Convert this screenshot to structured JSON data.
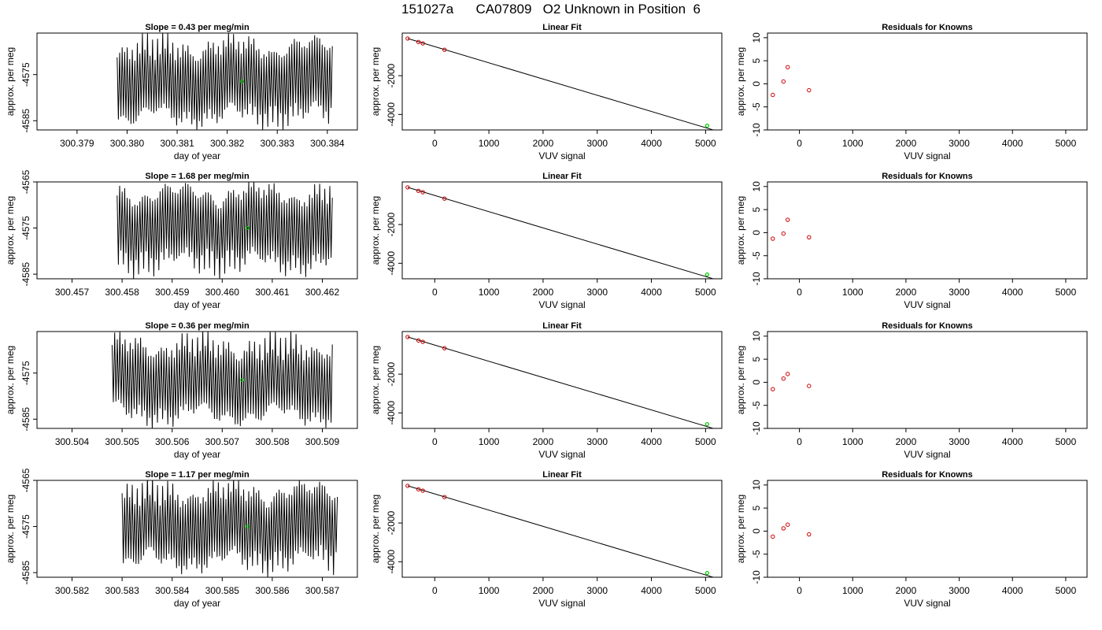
{
  "page_title": "151027a      CA07809   O2 Unknown in Position  6",
  "colors": {
    "trace": "#000000",
    "known_point": "#cc0000",
    "unknown_point": "#00cc00",
    "axis": "#000000"
  },
  "chart_data": [
    {
      "type": "line",
      "row": 1,
      "panel": "time-series",
      "title": "Slope =  0.43  per meg/min",
      "xlabel": "day of year",
      "ylabel": "approx. per meg",
      "xlim": [
        300.3782,
        300.3846
      ],
      "ylim": [
        -4587,
        -4566
      ],
      "x_ticks": [
        "300.379",
        "300.380",
        "300.381",
        "300.382",
        "300.383",
        "300.384"
      ],
      "y_ticks": [
        "-4575",
        "-4585"
      ],
      "trace": {
        "x_start": 300.3798,
        "x_end": 300.3841,
        "mean": -4576.5,
        "amplitude": 9.5
      },
      "highlight_point": {
        "x": 300.3823,
        "y": -4576.5
      }
    },
    {
      "type": "scatter",
      "row": 1,
      "panel": "linear-fit",
      "title": "Linear Fit",
      "xlabel": "VUV signal",
      "ylabel": "approx. per meg",
      "xlim": [
        -600,
        5300
      ],
      "ylim": [
        -4800,
        200
      ],
      "x_ticks": [
        "0",
        "1000",
        "2000",
        "3000",
        "4000",
        "5000"
      ],
      "y_ticks": [
        "-2000",
        "-4000"
      ],
      "fit_line": {
        "x": [
          -500,
          5200
        ],
        "y": [
          -80,
          -4850
        ]
      },
      "knowns": [
        {
          "x": -500,
          "y": -80
        },
        {
          "x": -300,
          "y": -260
        },
        {
          "x": -220,
          "y": -330
        },
        {
          "x": 180,
          "y": -660
        }
      ],
      "unknown": {
        "x": 5030,
        "y": -4580
      }
    },
    {
      "type": "scatter",
      "row": 1,
      "panel": "residuals",
      "title": "Residuals for Knowns",
      "xlabel": "VUV signal",
      "ylabel": "approx. per meg",
      "xlim": [
        -600,
        5400
      ],
      "ylim": [
        -10,
        11
      ],
      "x_ticks": [
        "0",
        "1000",
        "2000",
        "3000",
        "4000",
        "5000"
      ],
      "y_ticks": [
        "-10",
        "-5",
        "0",
        "5",
        "10"
      ],
      "points": [
        {
          "x": -500,
          "y": -2.4
        },
        {
          "x": -300,
          "y": 0.5
        },
        {
          "x": -220,
          "y": 3.6
        },
        {
          "x": 180,
          "y": -1.4
        }
      ]
    },
    {
      "type": "line",
      "row": 2,
      "panel": "time-series",
      "title": "Slope =  1.68  per meg/min",
      "xlabel": "day of year",
      "ylabel": "approx. per meg",
      "xlim": [
        300.4563,
        300.4627
      ],
      "ylim": [
        -4586,
        -4565
      ],
      "x_ticks": [
        "300.457",
        "300.458",
        "300.459",
        "300.460",
        "300.461",
        "300.462"
      ],
      "y_ticks": [
        "-4565",
        "-4575",
        "-4585"
      ],
      "trace": {
        "x_start": 300.4579,
        "x_end": 300.4622,
        "mean": -4575,
        "amplitude": 9.5
      },
      "highlight_point": {
        "x": 300.4605,
        "y": -4575
      }
    },
    {
      "type": "scatter",
      "row": 2,
      "panel": "linear-fit",
      "title": "Linear Fit",
      "xlabel": "VUV signal",
      "ylabel": "approx. per meg",
      "xlim": [
        -600,
        5300
      ],
      "ylim": [
        -4800,
        200
      ],
      "x_ticks": [
        "0",
        "1000",
        "2000",
        "3000",
        "4000",
        "5000"
      ],
      "y_ticks": [
        "-2000",
        "-4000"
      ],
      "fit_line": {
        "x": [
          -500,
          5200
        ],
        "y": [
          -80,
          -4850
        ]
      },
      "knowns": [
        {
          "x": -500,
          "y": -80
        },
        {
          "x": -300,
          "y": -260
        },
        {
          "x": -220,
          "y": -330
        },
        {
          "x": 180,
          "y": -660
        }
      ],
      "unknown": {
        "x": 5030,
        "y": -4580
      }
    },
    {
      "type": "scatter",
      "row": 2,
      "panel": "residuals",
      "title": "Residuals for Knowns",
      "xlabel": "VUV signal",
      "ylabel": "approx. per meg",
      "xlim": [
        -600,
        5400
      ],
      "ylim": [
        -10,
        11
      ],
      "x_ticks": [
        "0",
        "1000",
        "2000",
        "3000",
        "4000",
        "5000"
      ],
      "y_ticks": [
        "-10",
        "-5",
        "0",
        "5",
        "10"
      ],
      "points": [
        {
          "x": -500,
          "y": -1.3
        },
        {
          "x": -300,
          "y": -0.2
        },
        {
          "x": -220,
          "y": 2.8
        },
        {
          "x": 180,
          "y": -1.0
        }
      ]
    },
    {
      "type": "line",
      "row": 3,
      "panel": "time-series",
      "title": "Slope =  0.36  per meg/min",
      "xlabel": "day of year",
      "ylabel": "approx. per meg",
      "xlim": [
        300.5033,
        300.5097
      ],
      "ylim": [
        -4587,
        -4566
      ],
      "x_ticks": [
        "300.504",
        "300.505",
        "300.506",
        "300.507",
        "300.508",
        "300.509"
      ],
      "y_ticks": [
        "-4575",
        "-4585"
      ],
      "trace": {
        "x_start": 300.5048,
        "x_end": 300.5092,
        "mean": -4576.5,
        "amplitude": 9.5
      },
      "highlight_point": {
        "x": 300.5074,
        "y": -4576.5
      }
    },
    {
      "type": "scatter",
      "row": 3,
      "panel": "linear-fit",
      "title": "Linear Fit",
      "xlabel": "VUV signal",
      "ylabel": "approx. per meg",
      "xlim": [
        -600,
        5300
      ],
      "ylim": [
        -4800,
        200
      ],
      "x_ticks": [
        "0",
        "1000",
        "2000",
        "3000",
        "4000",
        "5000"
      ],
      "y_ticks": [
        "-2000",
        "-4000"
      ],
      "fit_line": {
        "x": [
          -500,
          5200
        ],
        "y": [
          -80,
          -4850
        ]
      },
      "knowns": [
        {
          "x": -500,
          "y": -80
        },
        {
          "x": -300,
          "y": -260
        },
        {
          "x": -220,
          "y": -330
        },
        {
          "x": 180,
          "y": -660
        }
      ],
      "unknown": {
        "x": 5030,
        "y": -4580
      }
    },
    {
      "type": "scatter",
      "row": 3,
      "panel": "residuals",
      "title": "Residuals for Knowns",
      "xlabel": "VUV signal",
      "ylabel": "approx. per meg",
      "xlim": [
        -600,
        5400
      ],
      "ylim": [
        -10,
        11
      ],
      "x_ticks": [
        "0",
        "1000",
        "2000",
        "3000",
        "4000",
        "5000"
      ],
      "y_ticks": [
        "-10",
        "-5",
        "0",
        "5",
        "10"
      ],
      "points": [
        {
          "x": -500,
          "y": -1.5
        },
        {
          "x": -300,
          "y": 0.8
        },
        {
          "x": -220,
          "y": 1.8
        },
        {
          "x": 180,
          "y": -0.8
        }
      ]
    },
    {
      "type": "line",
      "row": 4,
      "panel": "time-series",
      "title": "Slope =  1.17  per meg/min",
      "xlabel": "day of year",
      "ylabel": "approx. per meg",
      "xlim": [
        300.5813,
        300.5877
      ],
      "ylim": [
        -4586,
        -4565
      ],
      "x_ticks": [
        "300.582",
        "300.583",
        "300.584",
        "300.585",
        "300.586",
        "300.587"
      ],
      "y_ticks": [
        "-4565",
        "-4575",
        "-4585"
      ],
      "trace": {
        "x_start": 300.583,
        "x_end": 300.5873,
        "mean": -4575,
        "amplitude": 9.5
      },
      "highlight_point": {
        "x": 300.5855,
        "y": -4575
      }
    },
    {
      "type": "scatter",
      "row": 4,
      "panel": "linear-fit",
      "title": "Linear Fit",
      "xlabel": "VUV signal",
      "ylabel": "approx. per meg",
      "xlim": [
        -600,
        5300
      ],
      "ylim": [
        -4800,
        200
      ],
      "x_ticks": [
        "0",
        "1000",
        "2000",
        "3000",
        "4000",
        "5000"
      ],
      "y_ticks": [
        "-2000",
        "-4000"
      ],
      "fit_line": {
        "x": [
          -500,
          5200
        ],
        "y": [
          -80,
          -4850
        ]
      },
      "knowns": [
        {
          "x": -500,
          "y": -80
        },
        {
          "x": -300,
          "y": -260
        },
        {
          "x": -220,
          "y": -330
        },
        {
          "x": 180,
          "y": -660
        }
      ],
      "unknown": {
        "x": 5030,
        "y": -4580
      }
    },
    {
      "type": "scatter",
      "row": 4,
      "panel": "residuals",
      "title": "Residuals for Knowns",
      "xlabel": "VUV signal",
      "ylabel": "approx. per meg",
      "xlim": [
        -600,
        5400
      ],
      "ylim": [
        -10,
        11
      ],
      "x_ticks": [
        "0",
        "1000",
        "2000",
        "3000",
        "4000",
        "5000"
      ],
      "y_ticks": [
        "-10",
        "-5",
        "0",
        "5",
        "10"
      ],
      "points": [
        {
          "x": -500,
          "y": -1.2
        },
        {
          "x": -300,
          "y": 0.6
        },
        {
          "x": -220,
          "y": 1.4
        },
        {
          "x": 180,
          "y": -0.7
        }
      ]
    }
  ]
}
